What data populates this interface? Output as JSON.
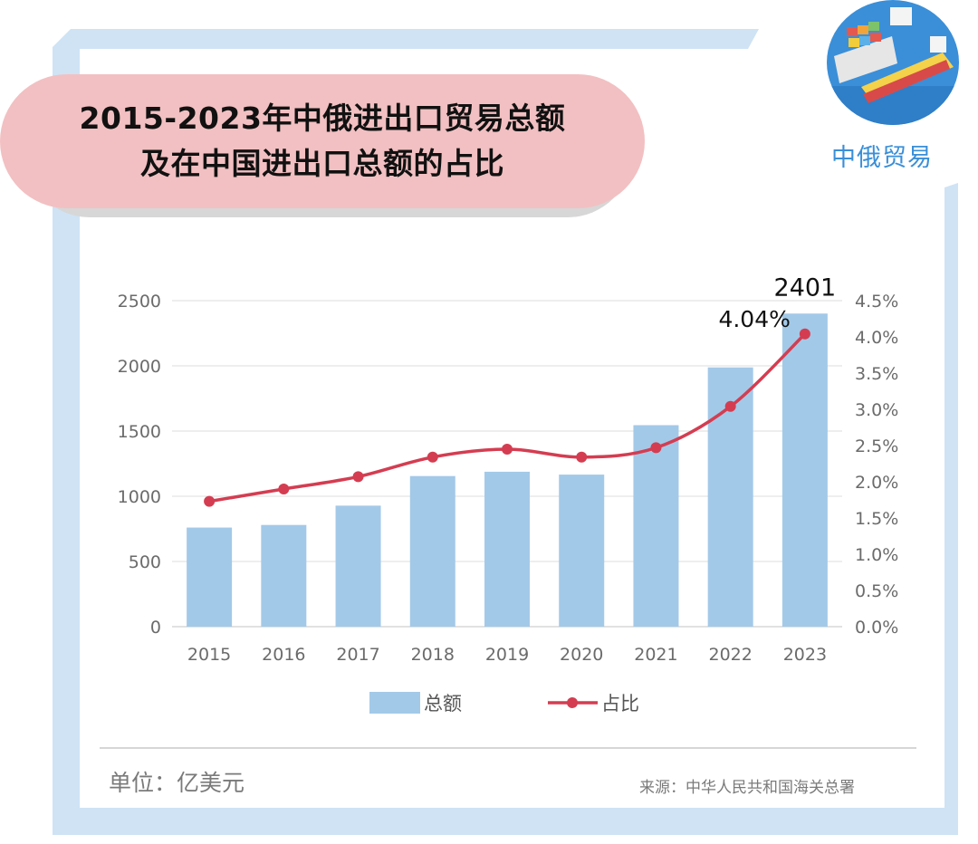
{
  "title": {
    "line1": "2015-2023年中俄进出口贸易总额",
    "line2": "及在中国进出口总额的占比"
  },
  "logo": {
    "label": "中俄贸易",
    "icon": "cargo-ships-icon"
  },
  "chart_data": {
    "type": "bar",
    "categories": [
      "2015",
      "2016",
      "2017",
      "2018",
      "2019",
      "2020",
      "2021",
      "2022",
      "2023"
    ],
    "series": [
      {
        "name": "总额",
        "type": "bar",
        "axis": "left",
        "color": "#a3c9e8",
        "values": [
          760,
          780,
          928,
          1155,
          1188,
          1166,
          1545,
          1988,
          2401
        ]
      },
      {
        "name": "占比",
        "type": "line",
        "axis": "right",
        "color": "#d43d51",
        "values": [
          1.73,
          1.9,
          2.07,
          2.34,
          2.45,
          2.34,
          2.47,
          3.04,
          4.04
        ]
      }
    ],
    "left_axis": {
      "ylim": [
        0,
        2500
      ],
      "ticks": [
        "0",
        "500",
        "1000",
        "1500",
        "2000",
        "2500"
      ]
    },
    "right_axis": {
      "ylim": [
        0,
        4.5
      ],
      "ticks": [
        "0.0%",
        "0.5%",
        "1.0%",
        "1.5%",
        "2.0%",
        "2.5%",
        "3.0%",
        "3.5%",
        "4.0%",
        "4.5%"
      ]
    },
    "annotations": {
      "bar_2023": "2401",
      "line_2023": "4.04%"
    },
    "grid": true,
    "legend_position": "bottom"
  },
  "footer": {
    "unit": "单位：亿美元",
    "source": "来源：中华人民共和国海关总署"
  }
}
